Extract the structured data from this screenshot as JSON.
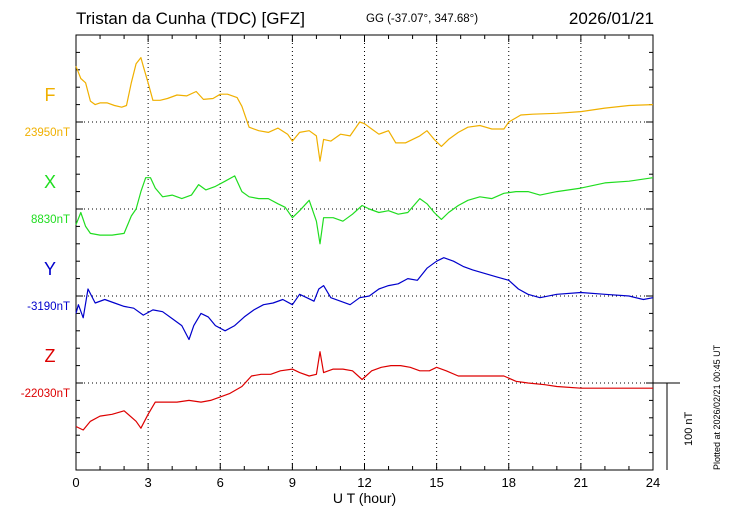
{
  "header": {
    "station": "Tristan da Cunha (TDC)  [GFZ]",
    "coords": "GG (-37.07°, 347.68°)",
    "date": "2026/01/21"
  },
  "plotted_note": "Plotted at 2026/02/21 00:45 UT",
  "scale_label": "100 nT",
  "chart_data": {
    "type": "line",
    "xlabel": "U T (hour)",
    "xlim": [
      0,
      24
    ],
    "xticks": [
      0,
      3,
      6,
      9,
      12,
      15,
      18,
      21,
      24
    ],
    "scale_bar_nT": 100,
    "grid": true,
    "series": [
      {
        "name": "F",
        "baseline_label": "23950nT",
        "color": "#f0b000",
        "offset": 0,
        "points": [
          [
            0,
            64
          ],
          [
            0.2,
            50
          ],
          [
            0.4,
            45
          ],
          [
            0.6,
            24
          ],
          [
            0.8,
            20
          ],
          [
            1.0,
            22
          ],
          [
            1.3,
            22
          ],
          [
            1.6,
            19
          ],
          [
            1.9,
            17
          ],
          [
            2.1,
            19
          ],
          [
            2.3,
            45
          ],
          [
            2.5,
            67
          ],
          [
            2.7,
            74
          ],
          [
            2.8,
            64
          ],
          [
            3.0,
            45
          ],
          [
            3.2,
            25
          ],
          [
            3.5,
            25
          ],
          [
            3.8,
            27
          ],
          [
            4.2,
            31
          ],
          [
            4.6,
            30
          ],
          [
            5.0,
            35
          ],
          [
            5.3,
            26
          ],
          [
            5.7,
            27
          ],
          [
            6.0,
            32
          ],
          [
            6.3,
            32
          ],
          [
            6.7,
            28
          ],
          [
            6.9,
            18
          ],
          [
            7.2,
            -6
          ],
          [
            7.6,
            -10
          ],
          [
            8.0,
            -12
          ],
          [
            8.4,
            -7
          ],
          [
            8.8,
            -14
          ],
          [
            9.0,
            -22
          ],
          [
            9.3,
            -12
          ],
          [
            9.7,
            -10
          ],
          [
            10.0,
            -16
          ],
          [
            10.15,
            -45
          ],
          [
            10.3,
            -20
          ],
          [
            10.6,
            -22
          ],
          [
            11.0,
            -14
          ],
          [
            11.4,
            -16
          ],
          [
            11.8,
            0
          ],
          [
            12.0,
            -2
          ],
          [
            12.3,
            -8
          ],
          [
            12.6,
            -14
          ],
          [
            13.0,
            -10
          ],
          [
            13.3,
            -24
          ],
          [
            13.7,
            -24
          ],
          [
            14.0,
            -20
          ],
          [
            14.3,
            -16
          ],
          [
            14.6,
            -10
          ],
          [
            14.9,
            -20
          ],
          [
            15.2,
            -28
          ],
          [
            15.5,
            -20
          ],
          [
            15.9,
            -12
          ],
          [
            16.3,
            -6
          ],
          [
            16.8,
            -4
          ],
          [
            17.3,
            -8
          ],
          [
            17.8,
            -8
          ],
          [
            18.0,
            0
          ],
          [
            18.5,
            8
          ],
          [
            19.0,
            9
          ],
          [
            20.0,
            10
          ],
          [
            21.0,
            12
          ],
          [
            22.0,
            16
          ],
          [
            23.0,
            19
          ],
          [
            24.0,
            20
          ]
        ]
      },
      {
        "name": "X",
        "baseline_label": "8830nT",
        "color": "#20dd20",
        "offset": 0,
        "points": [
          [
            0,
            -18
          ],
          [
            0.2,
            -4
          ],
          [
            0.4,
            -20
          ],
          [
            0.6,
            -28
          ],
          [
            1.0,
            -30
          ],
          [
            1.5,
            -30
          ],
          [
            2.0,
            -28
          ],
          [
            2.3,
            -8
          ],
          [
            2.5,
            0
          ],
          [
            2.7,
            20
          ],
          [
            2.9,
            36
          ],
          [
            3.1,
            36
          ],
          [
            3.3,
            24
          ],
          [
            3.6,
            14
          ],
          [
            4.0,
            16
          ],
          [
            4.4,
            12
          ],
          [
            4.8,
            16
          ],
          [
            5.1,
            28
          ],
          [
            5.4,
            22
          ],
          [
            5.8,
            26
          ],
          [
            6.2,
            32
          ],
          [
            6.6,
            38
          ],
          [
            6.9,
            20
          ],
          [
            7.2,
            14
          ],
          [
            7.6,
            12
          ],
          [
            8.0,
            12
          ],
          [
            8.4,
            6
          ],
          [
            8.7,
            2
          ],
          [
            9.0,
            -10
          ],
          [
            9.3,
            -2
          ],
          [
            9.7,
            10
          ],
          [
            10.0,
            -14
          ],
          [
            10.15,
            -40
          ],
          [
            10.3,
            -10
          ],
          [
            10.7,
            -10
          ],
          [
            11.1,
            -14
          ],
          [
            11.5,
            -6
          ],
          [
            11.9,
            4
          ],
          [
            12.2,
            0
          ],
          [
            12.6,
            -4
          ],
          [
            13.0,
            -2
          ],
          [
            13.4,
            -6
          ],
          [
            13.8,
            -4
          ],
          [
            14.3,
            12
          ],
          [
            14.6,
            6
          ],
          [
            14.9,
            -4
          ],
          [
            15.2,
            -12
          ],
          [
            15.5,
            -4
          ],
          [
            15.9,
            4
          ],
          [
            16.3,
            10
          ],
          [
            16.8,
            14
          ],
          [
            17.3,
            12
          ],
          [
            17.8,
            18
          ],
          [
            18.3,
            20
          ],
          [
            18.8,
            20
          ],
          [
            19.3,
            16
          ],
          [
            20.0,
            20
          ],
          [
            21.0,
            24
          ],
          [
            22.0,
            30
          ],
          [
            23.0,
            32
          ],
          [
            24.0,
            36
          ]
        ]
      },
      {
        "name": "Y",
        "baseline_label": "-3190nT",
        "color": "#0000cc",
        "offset": 0,
        "points": [
          [
            0,
            -20
          ],
          [
            0.1,
            -10
          ],
          [
            0.3,
            -25
          ],
          [
            0.5,
            8
          ],
          [
            0.8,
            -8
          ],
          [
            1.2,
            -4
          ],
          [
            1.6,
            -8
          ],
          [
            2.0,
            -12
          ],
          [
            2.4,
            -14
          ],
          [
            2.8,
            -22
          ],
          [
            3.2,
            -16
          ],
          [
            3.6,
            -18
          ],
          [
            4.0,
            -26
          ],
          [
            4.4,
            -34
          ],
          [
            4.7,
            -50
          ],
          [
            4.9,
            -34
          ],
          [
            5.2,
            -20
          ],
          [
            5.5,
            -24
          ],
          [
            5.8,
            -34
          ],
          [
            6.2,
            -40
          ],
          [
            6.6,
            -34
          ],
          [
            7.0,
            -24
          ],
          [
            7.4,
            -16
          ],
          [
            7.8,
            -10
          ],
          [
            8.2,
            -8
          ],
          [
            8.6,
            -4
          ],
          [
            9.0,
            -10
          ],
          [
            9.3,
            2
          ],
          [
            9.6,
            -2
          ],
          [
            9.9,
            -6
          ],
          [
            10.1,
            8
          ],
          [
            10.3,
            12
          ],
          [
            10.6,
            -2
          ],
          [
            11.0,
            -6
          ],
          [
            11.4,
            -10
          ],
          [
            11.8,
            -2
          ],
          [
            12.2,
            0
          ],
          [
            12.6,
            8
          ],
          [
            13.0,
            12
          ],
          [
            13.4,
            14
          ],
          [
            13.8,
            20
          ],
          [
            14.2,
            18
          ],
          [
            14.6,
            32
          ],
          [
            15.0,
            40
          ],
          [
            15.3,
            44
          ],
          [
            15.7,
            40
          ],
          [
            16.1,
            34
          ],
          [
            16.5,
            30
          ],
          [
            17.0,
            26
          ],
          [
            17.5,
            22
          ],
          [
            18.0,
            18
          ],
          [
            18.4,
            8
          ],
          [
            18.8,
            2
          ],
          [
            19.3,
            -2
          ],
          [
            20.0,
            2
          ],
          [
            21.0,
            4
          ],
          [
            22.0,
            2
          ],
          [
            23.0,
            0
          ],
          [
            23.6,
            -4
          ],
          [
            24.0,
            -2
          ]
        ]
      },
      {
        "name": "Z",
        "baseline_label": "-22030nT",
        "color": "#dd0000",
        "offset": 0,
        "points": [
          [
            0,
            -50
          ],
          [
            0.3,
            -54
          ],
          [
            0.6,
            -44
          ],
          [
            1.0,
            -38
          ],
          [
            1.5,
            -36
          ],
          [
            2.0,
            -32
          ],
          [
            2.5,
            -44
          ],
          [
            2.7,
            -52
          ],
          [
            3.0,
            -36
          ],
          [
            3.3,
            -22
          ],
          [
            3.7,
            -22
          ],
          [
            4.2,
            -22
          ],
          [
            4.7,
            -20
          ],
          [
            5.2,
            -22
          ],
          [
            5.6,
            -20
          ],
          [
            6.0,
            -16
          ],
          [
            6.4,
            -12
          ],
          [
            6.9,
            -4
          ],
          [
            7.3,
            8
          ],
          [
            7.7,
            10
          ],
          [
            8.1,
            10
          ],
          [
            8.5,
            14
          ],
          [
            9.0,
            16
          ],
          [
            9.3,
            12
          ],
          [
            9.7,
            8
          ],
          [
            10.0,
            10
          ],
          [
            10.15,
            36
          ],
          [
            10.3,
            12
          ],
          [
            10.7,
            16
          ],
          [
            11.1,
            16
          ],
          [
            11.5,
            14
          ],
          [
            11.9,
            4
          ],
          [
            12.3,
            14
          ],
          [
            12.7,
            18
          ],
          [
            13.1,
            20
          ],
          [
            13.5,
            20
          ],
          [
            13.9,
            18
          ],
          [
            14.3,
            14
          ],
          [
            14.7,
            14
          ],
          [
            15.0,
            18
          ],
          [
            15.4,
            14
          ],
          [
            15.9,
            8
          ],
          [
            16.4,
            8
          ],
          [
            16.9,
            8
          ],
          [
            17.4,
            8
          ],
          [
            17.8,
            8
          ],
          [
            18.3,
            2
          ],
          [
            18.8,
            0
          ],
          [
            19.5,
            -2
          ],
          [
            20.0,
            -4
          ],
          [
            21.0,
            -6
          ],
          [
            22.0,
            -6
          ],
          [
            23.0,
            -6
          ],
          [
            24.0,
            -6
          ]
        ]
      }
    ]
  }
}
